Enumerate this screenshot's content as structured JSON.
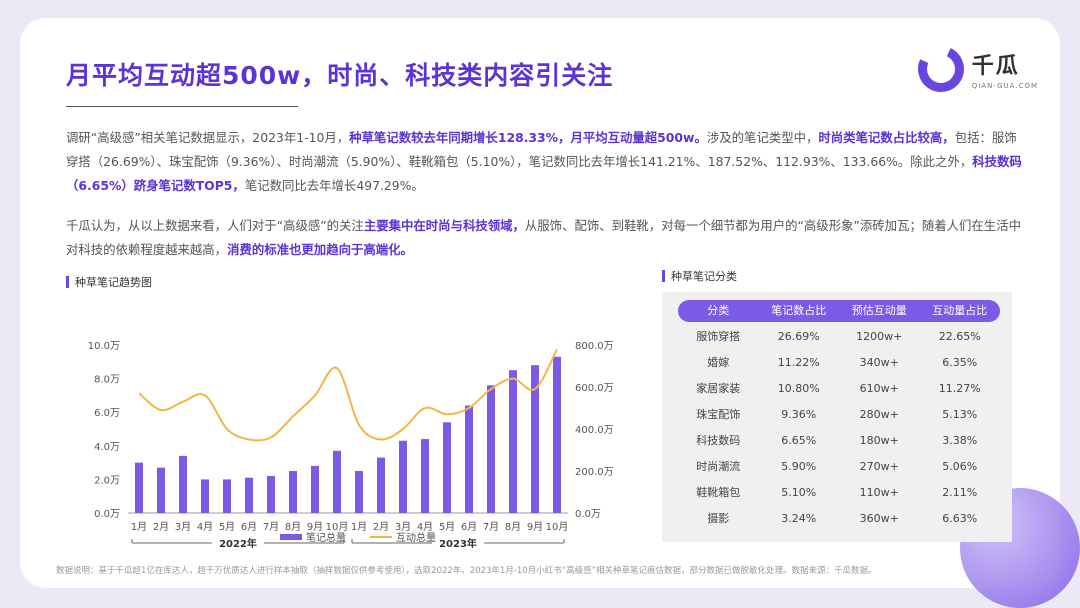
{
  "header": {
    "title": "月平均互动超500w，时尚、科技类内容引关注",
    "logo_cn": "千瓜",
    "logo_en": "QIAN-GUA.COM"
  },
  "paragraph1": {
    "t1": "调研“高级感”相关笔记数据显示，2023年1-10月，",
    "h1": "种草笔记数较去年同期增长128.33%，月平均互动量超500w。",
    "t2": "涉及的笔记类型中，",
    "h2": "时尚类笔记数占比较高，",
    "t3": "包括：服饰穿搭（26.69%）、珠宝配饰（9.36%）、时尚潮流（5.90%）、鞋靴箱包（5.10%），笔记数同比去年增长141.21%、187.52%、112.93%、133.66%。除此之外，",
    "h3": "科技数码（6.65%）跻身笔记数TOP5，",
    "t4": "笔记数同比去年增长497.29%。"
  },
  "paragraph2": {
    "t1": "千瓜认为，从以上数据来看，人们对于“高级感”的关注",
    "h1": "主要集中在时尚与科技领域，",
    "t2": "从服饰、配饰、到鞋靴，对每一个细节都为用户的“高级形象”添砖加瓦；随着人们在生活中对科技的依赖程度越来越高，",
    "h2": "消费的标准也更加趋向于高端化。"
  },
  "chart_section_title": "种草笔记趋势图",
  "table_section_title": "种草笔记分类",
  "chart_data": {
    "type": "bar",
    "categories": [
      "1月",
      "2月",
      "3月",
      "4月",
      "5月",
      "6月",
      "7月",
      "8月",
      "9月",
      "10月",
      "1月",
      "2月",
      "3月",
      "4月",
      "5月",
      "6月",
      "7月",
      "8月",
      "9月",
      "10月"
    ],
    "groups": [
      {
        "label": "2022年"
      },
      {
        "label": "2023年"
      }
    ],
    "series": [
      {
        "name": "笔记总量",
        "kind": "bar",
        "axis": "left",
        "color": "#7b5ae6",
        "values": [
          3.0,
          2.7,
          3.4,
          2.0,
          2.0,
          2.1,
          2.2,
          2.5,
          2.8,
          3.7,
          2.5,
          3.3,
          4.3,
          4.4,
          5.4,
          6.4,
          7.6,
          8.5,
          8.8,
          9.3
        ]
      },
      {
        "name": "互动总量",
        "kind": "line",
        "axis": "right",
        "color": "#f3b648",
        "values": [
          570,
          490,
          530,
          560,
          400,
          350,
          360,
          460,
          560,
          690,
          420,
          350,
          400,
          500,
          470,
          500,
          590,
          640,
          590,
          780
        ]
      }
    ],
    "y_left": {
      "ticks": [
        "0.0万",
        "2.0万",
        "4.0万",
        "6.0万",
        "8.0万",
        "10.0万"
      ],
      "min": 0,
      "max": 10
    },
    "y_right": {
      "ticks": [
        "0.0万",
        "200.0万",
        "400.0万",
        "600.0万",
        "800.0万"
      ],
      "min": 0,
      "max": 800
    },
    "legend": "bottom"
  },
  "table": {
    "headers": [
      "分类",
      "笔记数占比",
      "预估互动量",
      "互动量占比"
    ],
    "rows": [
      [
        "服饰穿搭",
        "26.69%",
        "1200w+",
        "22.65%"
      ],
      [
        "婚嫁",
        "11.22%",
        "340w+",
        "6.35%"
      ],
      [
        "家居家装",
        "10.80%",
        "610w+",
        "11.27%"
      ],
      [
        "珠宝配饰",
        "9.36%",
        "280w+",
        "5.13%"
      ],
      [
        "科技数码",
        "6.65%",
        "180w+",
        "3.38%"
      ],
      [
        "时尚潮流",
        "5.90%",
        "270w+",
        "5.06%"
      ],
      [
        "鞋靴箱包",
        "5.10%",
        "110w+",
        "2.11%"
      ],
      [
        "摄影",
        "3.24%",
        "360w+",
        "6.63%"
      ]
    ]
  },
  "footnote": "数据说明：基于千瓜超1亿在库达人，超千万优质达人进行样本抽取（抽样数据仅供参考使用），选取2022年、2023年1月-10月小红书“高级感”相关种草笔记痕估数据，部分数据已做脱敏化处理。数据来源：千瓜数据。"
}
